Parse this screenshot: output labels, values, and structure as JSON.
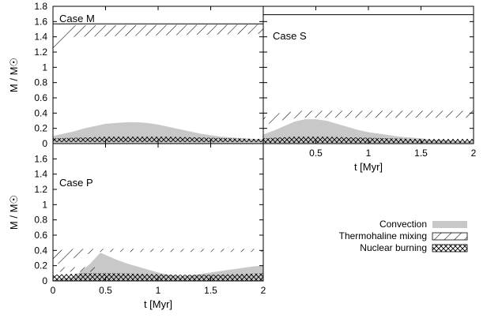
{
  "chart_data": [
    {
      "type": "area",
      "title": "Case M",
      "ylabel": "M / M☉",
      "xlabel": "",
      "xlim": [
        0,
        2
      ],
      "ylim": [
        0,
        1.8
      ],
      "yticks": [
        "0",
        "0.2",
        "0.4",
        "0.6",
        "0.8",
        "1",
        "1.2",
        "1.4",
        "1.6",
        "1.8"
      ],
      "xticks": [],
      "surface_mass": 1.57,
      "series": [
        {
          "kind": "convection",
          "x": [
            0,
            0.1,
            0.2,
            0.3,
            0.4,
            0.5,
            0.6,
            0.7,
            0.8,
            0.9,
            1.0,
            1.1,
            1.2,
            1.3,
            1.4,
            1.5,
            1.6,
            1.7,
            1.8,
            1.9,
            2.0
          ],
          "y": [
            0.1,
            0.13,
            0.16,
            0.2,
            0.23,
            0.26,
            0.27,
            0.28,
            0.28,
            0.27,
            0.25,
            0.22,
            0.19,
            0.16,
            0.13,
            0.11,
            0.09,
            0.08,
            0.07,
            0.06,
            0.06
          ]
        },
        {
          "kind": "thermohaline",
          "x": [
            0,
            0.1,
            0.2,
            2.0
          ],
          "lower": [
            1.2,
            1.3,
            1.4,
            1.44
          ],
          "upper": [
            1.3,
            1.4,
            1.55,
            1.56
          ]
        },
        {
          "kind": "nuclear",
          "x": [
            0,
            0.3,
            0.5,
            0.8,
            1.1,
            1.4,
            1.7,
            2.0
          ],
          "lower": [
            0.02,
            0.02,
            0.02,
            0.02,
            0.02,
            0.02,
            0.02,
            0.02
          ],
          "upper": [
            0.07,
            0.08,
            0.09,
            0.09,
            0.09,
            0.08,
            0.07,
            0.06
          ]
        }
      ]
    },
    {
      "type": "area",
      "title": "Case S",
      "ylabel": "",
      "xlabel": "t [Myr]",
      "xlim": [
        0,
        2
      ],
      "ylim": [
        0,
        1.8
      ],
      "yticks": [],
      "xticks": [
        "0.5",
        "1",
        "1.5",
        "2"
      ],
      "surface_mass": 1.69,
      "series": [
        {
          "kind": "convection",
          "x": [
            0,
            0.1,
            0.2,
            0.3,
            0.4,
            0.5,
            0.6,
            0.7,
            0.8,
            0.9,
            1.0,
            1.1,
            1.2,
            1.3,
            1.4,
            1.5,
            1.6,
            1.7,
            1.8,
            1.9,
            2.0
          ],
          "y": [
            0.12,
            0.17,
            0.23,
            0.29,
            0.32,
            0.32,
            0.3,
            0.26,
            0.22,
            0.18,
            0.15,
            0.13,
            0.11,
            0.09,
            0.08,
            0.07,
            0.05,
            0.05,
            0.04,
            0.03,
            0.03
          ]
        },
        {
          "kind": "thermohaline",
          "x": [
            0,
            0.15,
            0.35,
            2.0
          ],
          "lower": [
            0.24,
            0.3,
            0.34,
            0.34
          ],
          "upper": [
            0.34,
            0.4,
            0.43,
            0.43
          ]
        },
        {
          "kind": "nuclear",
          "x": [
            0,
            0.3,
            0.6,
            0.9,
            1.2,
            1.5,
            1.8,
            2.0
          ],
          "lower": [
            0.01,
            0.01,
            0.01,
            0.01,
            0.01,
            0.01,
            0.01,
            0.01
          ],
          "upper": [
            0.07,
            0.09,
            0.09,
            0.08,
            0.07,
            0.06,
            0.06,
            0.06
          ]
        }
      ]
    },
    {
      "type": "area",
      "title": "Case P",
      "ylabel": "M / M☉",
      "xlabel": "t [Myr]",
      "xlim": [
        0,
        2
      ],
      "ylim": [
        0,
        1.8
      ],
      "yticks": [
        "0",
        "0.2",
        "0.4",
        "0.6",
        "0.8",
        "1",
        "1.2",
        "1.4",
        "1.6"
      ],
      "xticks": [
        "0",
        "0.5",
        "1",
        "1.5",
        "2"
      ],
      "surface_mass": 1.82,
      "series": [
        {
          "kind": "convection",
          "x": [
            0,
            0.2,
            0.35,
            0.45,
            0.5,
            0.6,
            0.7,
            0.8,
            0.9,
            1.0,
            1.1,
            1.2,
            1.3,
            1.4,
            1.5,
            1.6,
            1.7,
            1.8,
            1.9,
            2.0
          ],
          "y": [
            0.02,
            0.05,
            0.22,
            0.37,
            0.34,
            0.28,
            0.23,
            0.19,
            0.15,
            0.11,
            0.08,
            0.06,
            0.07,
            0.09,
            0.11,
            0.13,
            0.15,
            0.17,
            0.19,
            0.2
          ]
        },
        {
          "kind": "thermohaline",
          "x": [
            0,
            0.2,
            0.4,
            2.0
          ],
          "lower": [
            0.2,
            0.3,
            0.38,
            0.38
          ],
          "upper": [
            0.4,
            0.42,
            0.42,
            0.42
          ]
        },
        {
          "kind": "nuclear",
          "x": [
            0,
            0.3,
            0.6,
            0.9,
            1.2,
            1.5,
            1.8,
            2.0
          ],
          "lower": [
            0,
            0,
            0,
            0,
            0,
            0,
            0,
            0
          ],
          "upper": [
            0.08,
            0.1,
            0.1,
            0.09,
            0.08,
            0.08,
            0.09,
            0.1
          ]
        },
        {
          "kind": "thermohaline_small",
          "x": [
            0.05,
            0.4
          ],
          "lower": [
            0.12,
            0.12
          ],
          "upper": [
            0.18,
            0.18
          ]
        }
      ]
    }
  ],
  "legend": {
    "placement": "bottom-right",
    "items": [
      {
        "label": "Convection",
        "kind": "convection"
      },
      {
        "label": "Thermohaline mixing",
        "kind": "thermohaline"
      },
      {
        "label": "Nuclear burning",
        "kind": "nuclear"
      }
    ]
  },
  "colors": {
    "convection": "#c8c8c8",
    "hatch": "#000000",
    "axis": "#000000",
    "background": "#ffffff"
  }
}
